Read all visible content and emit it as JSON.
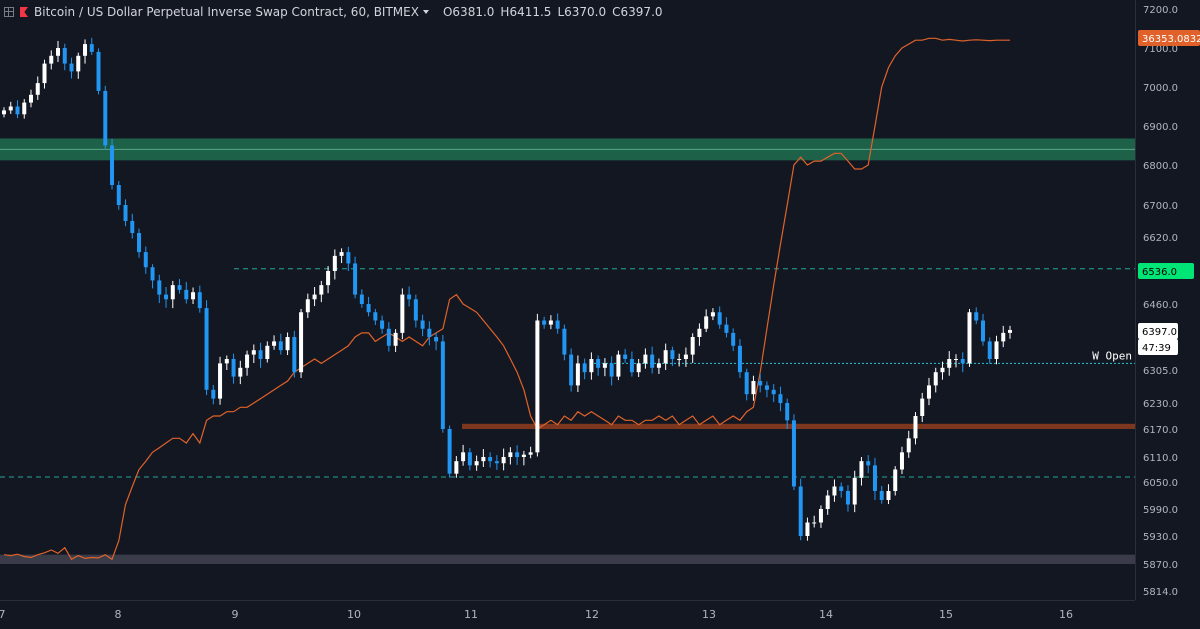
{
  "header": {
    "symbol": "Bitcoin / US Dollar Perpetual Inverse Swap Contract, 60, BITMEX",
    "ohlc": [
      {
        "key": "O",
        "value": "6381.0"
      },
      {
        "key": "H",
        "value": "6411.5"
      },
      {
        "key": "L",
        "value": "6370.0"
      },
      {
        "key": "C",
        "value": "6397.0"
      }
    ]
  },
  "colors": {
    "background": "#131722",
    "up": "#ffffff",
    "down": "#2196f3",
    "overlay": "#e0622a",
    "resistance_zone": "#1f6e4f",
    "support_zone": "#8a3b1f",
    "low_zone": "#4b4f5a",
    "dashed_level": "#26a69a",
    "w_open_line": "#26c6da"
  },
  "chart_data": {
    "type": "candlestick",
    "title": "",
    "x_tick_labels": [
      "7",
      "8",
      "9",
      "10",
      "11",
      "12",
      "13",
      "14",
      "15",
      "16"
    ],
    "y_tick_labels": [
      "7200.0",
      "7100.0",
      "7000.0",
      "6900.0",
      "6800.0",
      "6700.0",
      "6620.0",
      "6530.0",
      "6460.0",
      "6380.0",
      "6305.0",
      "6230.0",
      "6170.0",
      "6110.0",
      "6050.0",
      "5990.0",
      "5930.0",
      "5870.0",
      "5814.0"
    ],
    "grid": false,
    "levels": [
      {
        "label": "6536.0",
        "price": 6536,
        "style": "dashed"
      },
      {
        "label": "",
        "price": 6062,
        "style": "dashed"
      },
      {
        "label": "W Open",
        "price": 6320,
        "style": "dotted"
      }
    ],
    "zones": [
      {
        "kind": "resistance",
        "from": 6812,
        "to": 6868
      },
      {
        "kind": "support",
        "from": 6170,
        "to": 6182
      },
      {
        "kind": "low",
        "from": 5870,
        "to": 5890
      }
    ],
    "price_badges": {
      "last_price": "6397.0",
      "countdown": "47:39",
      "overlay_value": "36353.0832"
    },
    "candles_close": [
      6940,
      6950,
      6930,
      6960,
      6980,
      7010,
      7060,
      7080,
      7100,
      7060,
      7040,
      7080,
      7110,
      7090,
      6990,
      6850,
      6750,
      6700,
      6660,
      6630,
      6580,
      6540,
      6510,
      6480,
      6470,
      6500,
      6490,
      6470,
      6485,
      6450,
      6260,
      6240,
      6320,
      6330,
      6290,
      6310,
      6340,
      6350,
      6330,
      6360,
      6370,
      6350,
      6380,
      6300,
      6440,
      6470,
      6480,
      6500,
      6530,
      6570,
      6580,
      6550,
      6480,
      6460,
      6440,
      6420,
      6400,
      6360,
      6390,
      6480,
      6470,
      6420,
      6400,
      6380,
      6370,
      6170,
      6070,
      6100,
      6120,
      6090,
      6100,
      6110,
      6100,
      6095,
      6110,
      6120,
      6110,
      6115,
      6120,
      6420,
      6410,
      6420,
      6400,
      6340,
      6270,
      6320,
      6300,
      6330,
      6310,
      6320,
      6290,
      6340,
      6330,
      6300,
      6320,
      6340,
      6310,
      6320,
      6350,
      6330,
      6330,
      6340,
      6380,
      6400,
      6430,
      6440,
      6410,
      6390,
      6360,
      6300,
      6250,
      6280,
      6270,
      6260,
      6250,
      6230,
      6190,
      6040,
      5930,
      5960,
      5960,
      5990,
      6020,
      6040,
      6030,
      6000,
      6060,
      6100,
      6090,
      6030,
      6010,
      6030,
      6080,
      6120,
      6150,
      6200,
      6240,
      6270,
      6300,
      6310,
      6330,
      6330,
      6320,
      6440,
      6420,
      6370,
      6330,
      6370,
      6390,
      6397
    ],
    "overlay_series": [
      5890,
      5888,
      5891,
      5886,
      5884,
      5890,
      5894,
      5900,
      5893,
      5905,
      5880,
      5888,
      5882,
      5884,
      5883,
      5890,
      5880,
      5920,
      6000,
      6040,
      6080,
      6100,
      6120,
      6130,
      6140,
      6150,
      6150,
      6140,
      6160,
      6140,
      6190,
      6200,
      6200,
      6210,
      6210,
      6220,
      6220,
      6230,
      6240,
      6250,
      6260,
      6270,
      6280,
      6300,
      6310,
      6320,
      6330,
      6320,
      6330,
      6340,
      6350,
      6360,
      6380,
      6390,
      6390,
      6370,
      6380,
      6390,
      6380,
      6370,
      6380,
      6370,
      6360,
      6380,
      6390,
      6400,
      6470,
      6480,
      6460,
      6450,
      6440,
      6420,
      6400,
      6380,
      6360,
      6330,
      6300,
      6260,
      6200,
      6170,
      6180,
      6190,
      6180,
      6200,
      6190,
      6210,
      6200,
      6210,
      6200,
      6190,
      6180,
      6200,
      6190,
      6190,
      6180,
      6190,
      6190,
      6200,
      6190,
      6200,
      6180,
      6190,
      6200,
      6180,
      6190,
      6200,
      6180,
      6190,
      6200,
      6190,
      6210,
      6220,
      6300,
      6400,
      6500,
      6600,
      6700,
      6800,
      6820,
      6800,
      6810,
      6810,
      6820,
      6830,
      6830,
      6810,
      6790,
      6790,
      6800,
      6900,
      7000,
      7050,
      7080,
      7100,
      7110,
      7120,
      7120,
      7125,
      7125,
      7120,
      7122,
      7120,
      7118,
      7120,
      7121,
      7120,
      7119,
      7120,
      7120,
      7120
    ]
  }
}
